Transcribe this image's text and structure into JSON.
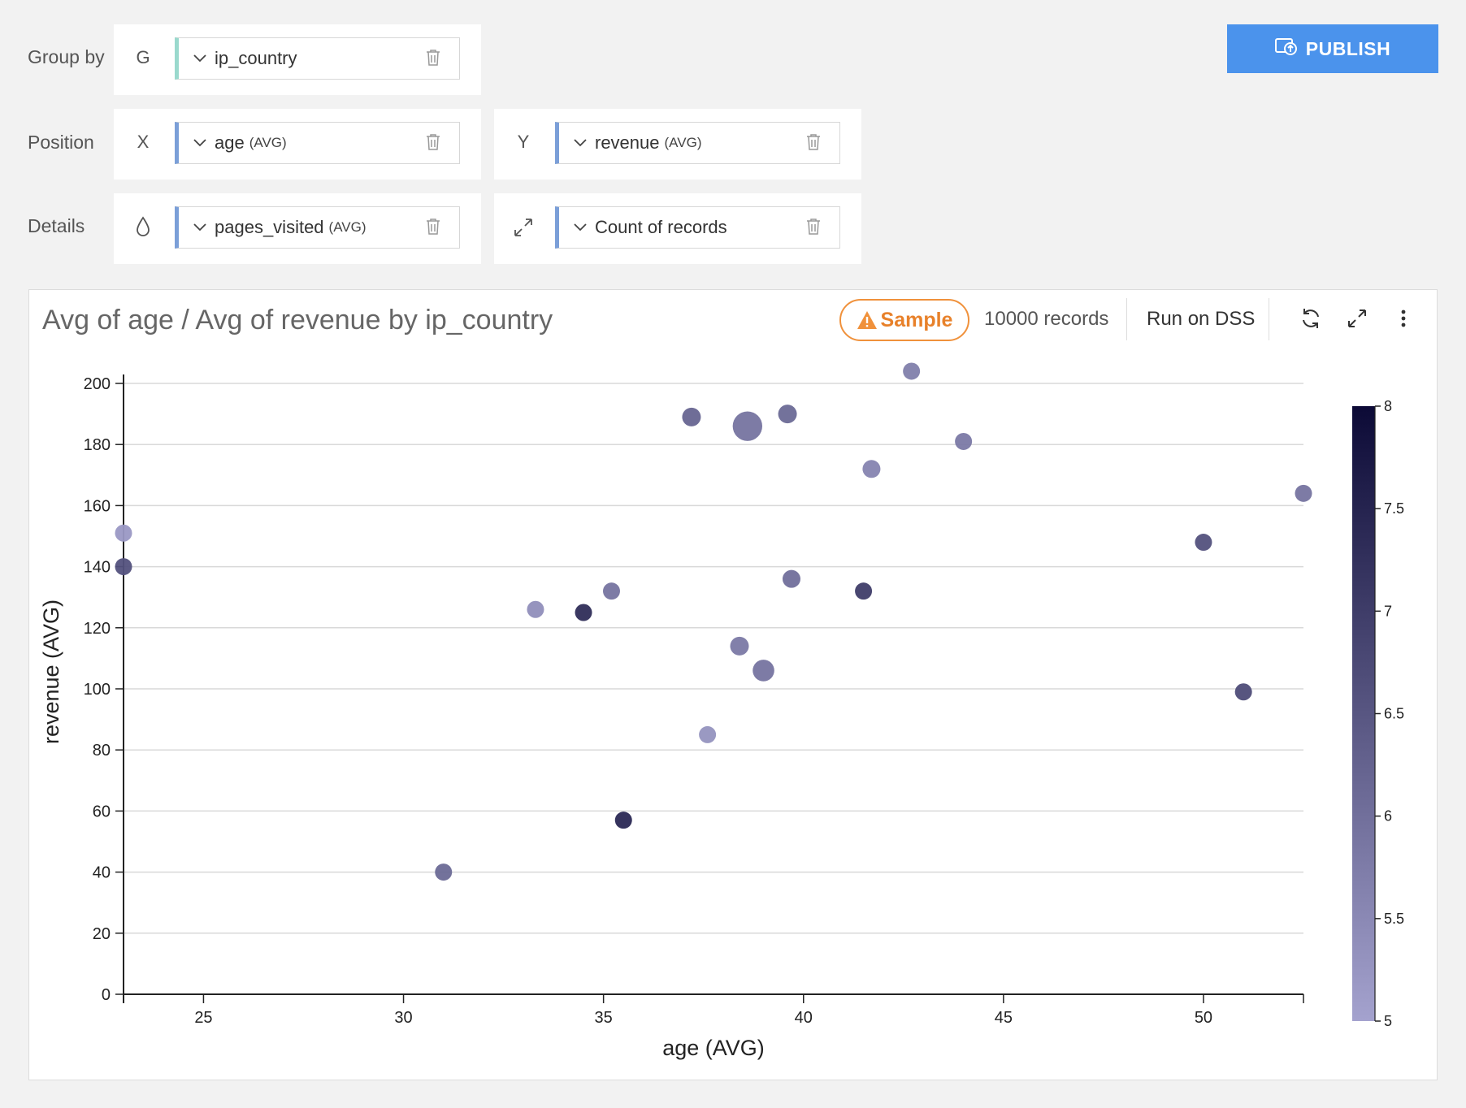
{
  "toolbar": {
    "group_by_label": "Group by",
    "position_label": "Position",
    "details_label": "Details",
    "publish_label": "PUBLISH"
  },
  "fields": {
    "group": {
      "letter": "G",
      "name": "ip_country",
      "agg": ""
    },
    "x": {
      "letter": "X",
      "name": "age",
      "agg": "(AVG)"
    },
    "y": {
      "letter": "Y",
      "name": "revenue",
      "agg": "(AVG)"
    },
    "color": {
      "name": "pages_visited",
      "agg": "(AVG)"
    },
    "size": {
      "name": "Count of records",
      "agg": ""
    }
  },
  "chart_header": {
    "title": "Avg of age / Avg of revenue by ip_country",
    "sample_label": "Sample",
    "records_label": "10000 records",
    "run_label": "Run on DSS"
  },
  "colors": {
    "accent": "#4b93ec",
    "warning": "#f0913b",
    "scale_low": "#a4a2ce",
    "scale_high": "#0c0a36"
  },
  "chart_data": {
    "type": "scatter",
    "xlabel": "age (AVG)",
    "ylabel": "revenue (AVG)",
    "xlim": [
      23,
      52.5
    ],
    "ylim": [
      0,
      200
    ],
    "x_ticks": [
      25,
      30,
      35,
      40,
      45,
      50
    ],
    "y_ticks": [
      0,
      20,
      40,
      60,
      80,
      100,
      120,
      140,
      160,
      180,
      200
    ],
    "grid": "horizontal",
    "color_scale": {
      "field": "pages_visited (AVG)",
      "min": 5,
      "max": 8,
      "ticks": [
        "8",
        "7.5",
        "7",
        "6.5",
        "6",
        "5.5",
        "5"
      ]
    },
    "points": [
      {
        "x": 23.0,
        "y": 151,
        "color": 5.2,
        "size": 1
      },
      {
        "x": 23.0,
        "y": 140,
        "color": 6.6,
        "size": 1
      },
      {
        "x": 31.0,
        "y": 40,
        "color": 6.1,
        "size": 1
      },
      {
        "x": 33.3,
        "y": 126,
        "color": 5.4,
        "size": 1
      },
      {
        "x": 34.5,
        "y": 125,
        "color": 7.3,
        "size": 1
      },
      {
        "x": 35.2,
        "y": 132,
        "color": 5.9,
        "size": 1
      },
      {
        "x": 35.5,
        "y": 57,
        "color": 7.4,
        "size": 1
      },
      {
        "x": 37.2,
        "y": 189,
        "color": 6.2,
        "size": 1.2
      },
      {
        "x": 37.6,
        "y": 85,
        "color": 5.3,
        "size": 1
      },
      {
        "x": 38.4,
        "y": 114,
        "color": 5.8,
        "size": 1.2
      },
      {
        "x": 38.6,
        "y": 186,
        "color": 5.9,
        "size": 3
      },
      {
        "x": 39.0,
        "y": 106,
        "color": 5.9,
        "size": 1.6
      },
      {
        "x": 39.6,
        "y": 190,
        "color": 6.1,
        "size": 1.2
      },
      {
        "x": 39.7,
        "y": 136,
        "color": 6.0,
        "size": 1.1
      },
      {
        "x": 41.5,
        "y": 132,
        "color": 7.0,
        "size": 1
      },
      {
        "x": 41.7,
        "y": 172,
        "color": 5.6,
        "size": 1.1
      },
      {
        "x": 42.7,
        "y": 204,
        "color": 5.7,
        "size": 1
      },
      {
        "x": 44.0,
        "y": 181,
        "color": 5.8,
        "size": 1
      },
      {
        "x": 50.0,
        "y": 148,
        "color": 6.6,
        "size": 1
      },
      {
        "x": 51.0,
        "y": 99,
        "color": 6.7,
        "size": 1
      },
      {
        "x": 52.5,
        "y": 164,
        "color": 5.9,
        "size": 1
      }
    ]
  }
}
